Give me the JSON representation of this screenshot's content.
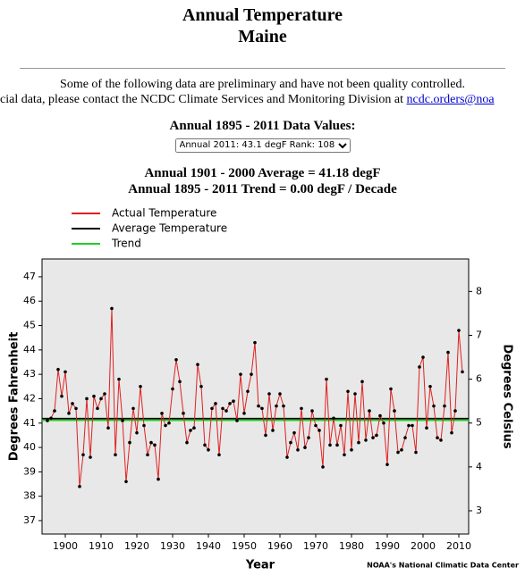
{
  "header": {
    "title": "Annual Temperature",
    "subtitle": "Maine"
  },
  "notice": {
    "line1": "Some of the following data are preliminary and have not been quality controlled.",
    "line2": "cial data, please contact the NCDC Climate Services and Monitoring Division at",
    "link": "ncdc.orders@noa"
  },
  "selector": {
    "label": "Annual 1895 - 2011 Data Values:",
    "selected": "Annual 2011: 43.1 degF   Rank: 108"
  },
  "summary": {
    "average": "Annual 1901 - 2000 Average = 41.18 degF",
    "trend": "Annual 1895 - 2011 Trend = 0.00 degF / Decade"
  },
  "chart_data": {
    "type": "line",
    "x_label": "Year",
    "y_label": "Degrees Fahrenheit",
    "y2_label": "Degrees Celsius",
    "credit": "NOAA's National Climatic Data Center",
    "x": [
      1895,
      1896,
      1897,
      1898,
      1899,
      1900,
      1901,
      1902,
      1903,
      1904,
      1905,
      1906,
      1907,
      1908,
      1909,
      1910,
      1911,
      1912,
      1913,
      1914,
      1915,
      1916,
      1917,
      1918,
      1919,
      1920,
      1921,
      1922,
      1923,
      1924,
      1925,
      1926,
      1927,
      1928,
      1929,
      1930,
      1931,
      1932,
      1933,
      1934,
      1935,
      1936,
      1937,
      1938,
      1939,
      1940,
      1941,
      1942,
      1943,
      1944,
      1945,
      1946,
      1947,
      1948,
      1949,
      1950,
      1951,
      1952,
      1953,
      1954,
      1955,
      1956,
      1957,
      1958,
      1959,
      1960,
      1961,
      1962,
      1963,
      1964,
      1965,
      1966,
      1967,
      1968,
      1969,
      1970,
      1971,
      1972,
      1973,
      1974,
      1975,
      1976,
      1977,
      1978,
      1979,
      1980,
      1981,
      1982,
      1983,
      1984,
      1985,
      1986,
      1987,
      1988,
      1989,
      1990,
      1991,
      1992,
      1993,
      1994,
      1995,
      1996,
      1997,
      1998,
      1999,
      2000,
      2001,
      2002,
      2003,
      2004,
      2005,
      2006,
      2007,
      2008,
      2009,
      2010,
      2011
    ],
    "series": [
      {
        "name": "Actual Temperature",
        "color": "#e02020",
        "values": [
          41.1,
          41.2,
          41.5,
          43.2,
          42.1,
          43.1,
          41.4,
          41.8,
          41.6,
          38.4,
          39.7,
          42.0,
          39.6,
          42.1,
          41.6,
          42.0,
          42.2,
          40.8,
          45.7,
          39.7,
          42.8,
          41.1,
          38.6,
          40.2,
          41.6,
          40.6,
          42.5,
          40.9,
          39.7,
          40.2,
          40.1,
          38.7,
          41.4,
          40.9,
          41.0,
          42.4,
          43.6,
          42.7,
          41.4,
          40.2,
          40.7,
          40.8,
          43.4,
          42.5,
          40.1,
          39.9,
          41.6,
          41.8,
          39.7,
          41.6,
          41.5,
          41.8,
          41.9,
          41.1,
          43.0,
          41.4,
          42.3,
          43.0,
          44.3,
          41.7,
          41.6,
          40.5,
          42.2,
          40.7,
          41.7,
          42.2,
          41.7,
          39.6,
          40.2,
          40.6,
          39.9,
          41.6,
          40.0,
          40.4,
          41.5,
          40.9,
          40.7,
          39.2,
          42.8,
          40.1,
          41.2,
          40.1,
          40.9,
          39.7,
          42.3,
          39.9,
          42.2,
          40.2,
          42.7,
          40.3,
          41.5,
          40.4,
          40.5,
          41.3,
          41.0,
          39.3,
          42.4,
          41.5,
          39.8,
          39.9,
          40.4,
          40.9,
          40.9,
          39.8,
          43.3,
          43.7,
          40.8,
          42.5,
          41.7,
          40.4,
          40.3,
          41.7,
          43.9,
          40.6,
          41.5,
          44.8,
          43.1
        ]
      },
      {
        "name": "Average Temperature",
        "color": "#000000",
        "level": 41.18
      },
      {
        "name": "Trend",
        "color": "#22cc22",
        "level": 41.12
      }
    ],
    "xlim": [
      1893.5,
      2012.75
    ],
    "xticks": [
      1900,
      1910,
      1920,
      1930,
      1940,
      1950,
      1960,
      1970,
      1980,
      1990,
      2000,
      2010
    ],
    "ylim": [
      36.45,
      47.73
    ],
    "yticks": [
      37,
      38,
      39,
      40,
      41,
      42,
      43,
      44,
      45,
      46,
      47
    ],
    "y2lim": [
      2.47,
      8.74
    ],
    "y2ticks": [
      3,
      4,
      5,
      6,
      7,
      8
    ]
  }
}
